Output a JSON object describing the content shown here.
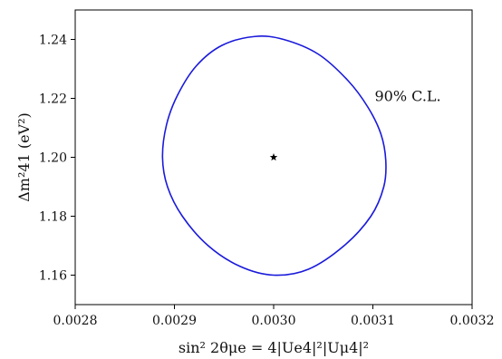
{
  "chart_data": {
    "type": "line",
    "title": "",
    "xlabel": "sin² 2θμe = 4|Ue4|²|Uμ4|²",
    "ylabel": "Δm²41 (eV²)",
    "xlim": [
      0.0028,
      0.0032
    ],
    "ylim": [
      1.15,
      1.25
    ],
    "xticks": [
      0.0028,
      0.0029,
      0.003,
      0.0031,
      0.0032
    ],
    "xtick_labels": [
      "0.0028",
      "0.0029",
      "0.0030",
      "0.0031",
      "0.0032"
    ],
    "yticks": [
      1.16,
      1.18,
      1.2,
      1.22,
      1.24
    ],
    "ytick_labels": [
      "1.16",
      "1.18",
      "1.20",
      "1.22",
      "1.24"
    ],
    "grid": false,
    "legend": "none",
    "best_fit": {
      "x": 0.003,
      "y": 1.2,
      "marker": "star"
    },
    "annotations": [
      {
        "text": "90% C.L.",
        "x": 0.0031,
        "y": 1.221
      }
    ],
    "series": [
      {
        "color": "#1a1adb",
        "x": [
          0.002888,
          0.002892,
          0.002903,
          0.002922,
          0.002948,
          0.002981,
          0.00301,
          0.003045,
          0.003075,
          0.003095,
          0.003108,
          0.003113,
          0.003111,
          0.003098,
          0.003071,
          0.003035,
          0.003,
          0.002966,
          0.002934,
          0.002908,
          0.002893,
          0.002888
        ],
        "y": [
          1.2,
          1.211,
          1.221,
          1.231,
          1.238,
          1.241,
          1.24,
          1.235,
          1.226,
          1.217,
          1.208,
          1.199,
          1.19,
          1.18,
          1.17,
          1.162,
          1.16,
          1.163,
          1.17,
          1.18,
          1.19,
          1.2
        ]
      }
    ]
  }
}
